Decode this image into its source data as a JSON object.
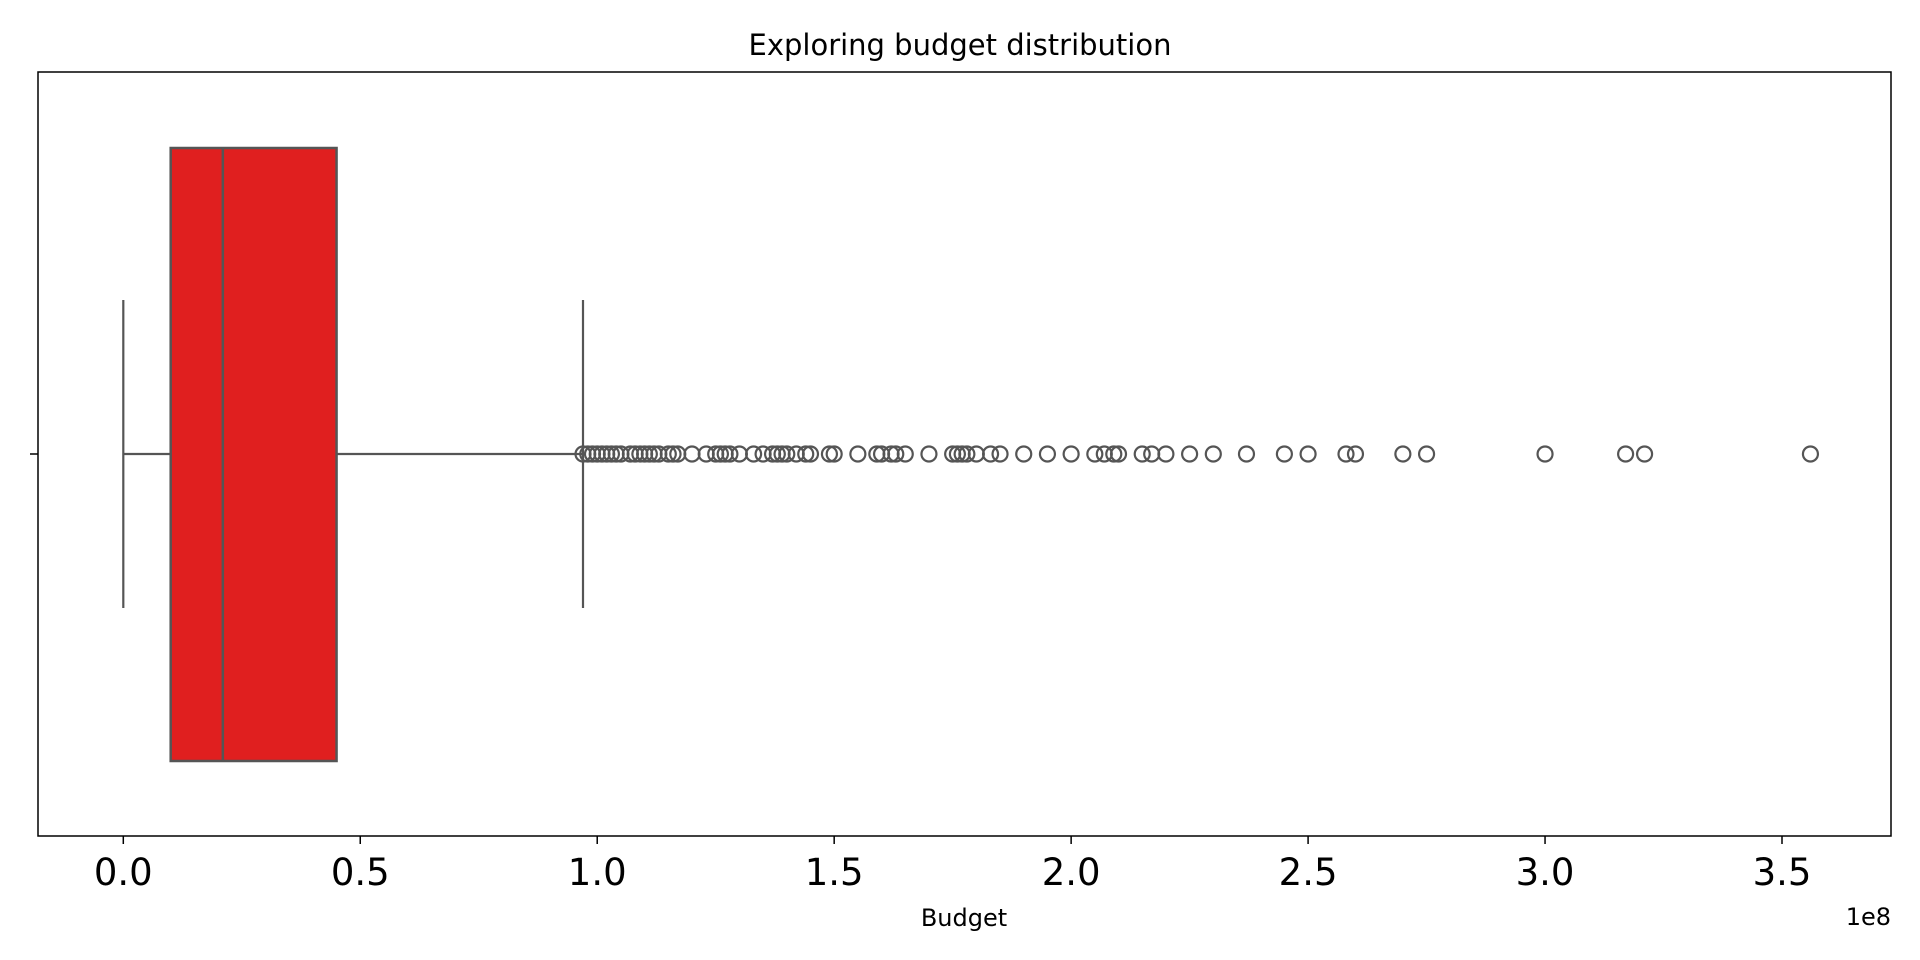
{
  "chart_data": {
    "type": "boxplot",
    "orientation": "horizontal",
    "title": "Exploring budget distribution",
    "xlabel": "Budget",
    "ylabel": "",
    "x_offset_label": "1e8",
    "xlim": [
      -0.18,
      3.73
    ],
    "x_ticks": [
      0.0,
      0.5,
      1.0,
      1.5,
      2.0,
      2.5,
      3.0,
      3.5
    ],
    "x_tick_labels": [
      "0.0",
      "0.5",
      "1.0",
      "1.5",
      "2.0",
      "2.5",
      "3.0",
      "3.5"
    ],
    "grid": false,
    "legend": "none",
    "colors": {
      "box_fill": "#e01f1f",
      "line": "#555555",
      "frame": "#000000",
      "background": "#ffffff"
    },
    "series": [
      {
        "whisker_low": 0.0,
        "q1": 0.1,
        "median": 0.21,
        "q3": 0.45,
        "whisker_high": 0.97,
        "outliers": [
          0.97,
          0.98,
          0.99,
          1.0,
          1.01,
          1.02,
          1.03,
          1.04,
          1.05,
          1.07,
          1.08,
          1.09,
          1.1,
          1.11,
          1.12,
          1.13,
          1.15,
          1.16,
          1.17,
          1.2,
          1.23,
          1.25,
          1.26,
          1.27,
          1.28,
          1.3,
          1.33,
          1.35,
          1.37,
          1.38,
          1.39,
          1.4,
          1.42,
          1.44,
          1.45,
          1.49,
          1.5,
          1.55,
          1.59,
          1.6,
          1.62,
          1.63,
          1.65,
          1.7,
          1.75,
          1.76,
          1.77,
          1.78,
          1.8,
          1.83,
          1.85,
          1.9,
          1.95,
          2.0,
          2.05,
          2.07,
          2.09,
          2.1,
          2.15,
          2.17,
          2.2,
          2.25,
          2.3,
          2.37,
          2.45,
          2.5,
          2.58,
          2.6,
          2.7,
          2.75,
          3.0,
          3.17,
          3.21,
          3.56
        ]
      }
    ]
  }
}
